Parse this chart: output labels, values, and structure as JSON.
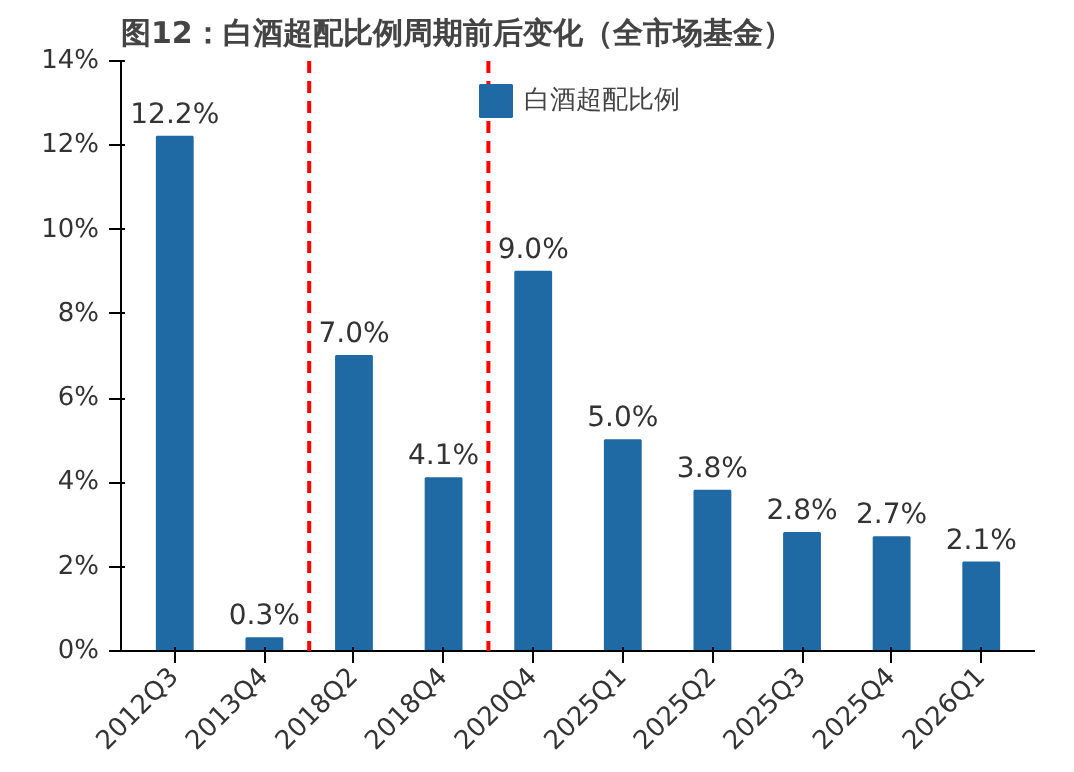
{
  "chart_data": {
    "type": "bar",
    "title": "图12：白酒超配比例周期前后变化（全市场基金）",
    "categories": [
      "2012Q3",
      "2013Q4",
      "2018Q2",
      "2018Q4",
      "2020Q4",
      "2025Q1",
      "2025Q2",
      "2025Q3",
      "2025Q4",
      "2026Q1"
    ],
    "series": [
      {
        "name": "白酒超配比例",
        "color": "#1f6aa5",
        "values": [
          12.2,
          0.3,
          7.0,
          4.1,
          9.0,
          5.0,
          3.8,
          2.8,
          2.7,
          2.1
        ],
        "value_labels": [
          "12.2%",
          "0.3%",
          "7.0%",
          "4.1%",
          "9.0%",
          "5.0%",
          "3.8%",
          "2.8%",
          "2.7%",
          "2.1%"
        ]
      }
    ],
    "ylim": [
      0,
      14
    ],
    "yticks": [
      {
        "value": 0,
        "label": "0%"
      },
      {
        "value": 2,
        "label": "2%"
      },
      {
        "value": 4,
        "label": "4%"
      },
      {
        "value": 6,
        "label": "6%"
      },
      {
        "value": 8,
        "label": "8%"
      },
      {
        "value": 10,
        "label": "10%"
      },
      {
        "value": 12,
        "label": "12%"
      },
      {
        "value": 14,
        "label": "14%"
      }
    ],
    "legend": "top",
    "grid": false
  }
}
